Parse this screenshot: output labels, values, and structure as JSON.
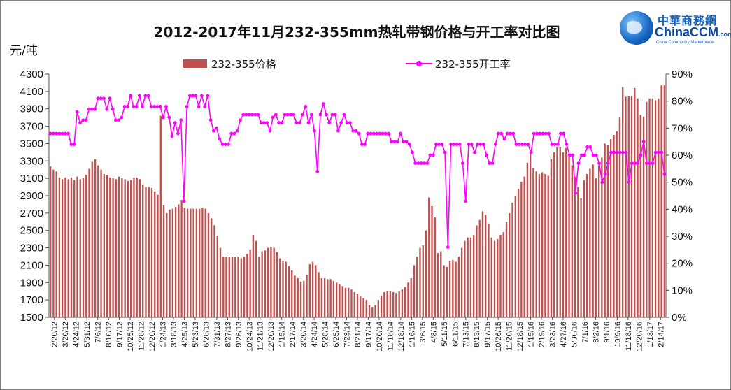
{
  "chart_data": {
    "type": "bar",
    "title": "2012-2017年11月232-355mm热轧带钢价格与开工率对比图",
    "ylabel": "元/吨",
    "ylim": [
      1500,
      4300
    ],
    "y2lim": [
      0,
      90
    ],
    "yticks": [
      "4300",
      "4100",
      "3900",
      "3700",
      "3500",
      "3300",
      "3100",
      "2900",
      "2700",
      "2500",
      "2300",
      "2100",
      "1900",
      "1700",
      "1500"
    ],
    "y2ticks": [
      "90%",
      "80%",
      "70%",
      "60%",
      "50%",
      "40%",
      "30%",
      "20%",
      "10%",
      "0%"
    ],
    "grid": false,
    "legend_position": "top",
    "bar_color": "#c0504d",
    "line_color": "#ff00ff",
    "series": [
      {
        "name": "232-355价格",
        "kind": "bar",
        "values": [
          3240,
          3200,
          3180,
          3110,
          3090,
          3110,
          3090,
          3110,
          3080,
          3120,
          3090,
          3100,
          3140,
          3210,
          3290,
          3320,
          3250,
          3200,
          3150,
          3140,
          3110,
          3100,
          3090,
          3120,
          3100,
          3090,
          3070,
          3080,
          3110,
          3110,
          3090,
          3030,
          3000,
          3000,
          2990,
          2950,
          2910,
          3820,
          2790,
          2700,
          2740,
          2750,
          2770,
          2800,
          2850,
          2760,
          2750,
          2750,
          2750,
          2750,
          2750,
          2760,
          2750,
          2700,
          2640,
          2560,
          2440,
          2300,
          2200,
          2200,
          2200,
          2200,
          2200,
          2200,
          2180,
          2200,
          2230,
          2280,
          2450,
          2380,
          2200,
          2260,
          2270,
          2300,
          2310,
          2300,
          2250,
          2180,
          2150,
          2140,
          2090,
          2040,
          1980,
          1950,
          1910,
          1920,
          1990,
          2110,
          2140,
          2100,
          2020,
          1950,
          1950,
          1940,
          1940,
          1920,
          1900,
          1880,
          1860,
          1840,
          1840,
          1820,
          1790,
          1770,
          1740,
          1720,
          1700,
          1640,
          1620,
          1640,
          1700,
          1750,
          1790,
          1800,
          1800,
          1790,
          1780,
          1800,
          1820,
          1850,
          1900,
          1950,
          2100,
          2200,
          2300,
          2330,
          2500,
          2880,
          2780,
          2650,
          2240,
          2260,
          2100,
          2080,
          2150,
          2160,
          2140,
          2200,
          2300,
          2380,
          2420,
          2420,
          2450,
          2560,
          2620,
          2720,
          2680,
          2580,
          2420,
          2380,
          2400,
          2450,
          2480,
          2600,
          2700,
          2820,
          2900,
          2980,
          3060,
          3120,
          3280,
          3400,
          3220,
          3180,
          3150,
          3170,
          3150,
          3130,
          3320,
          3400,
          3460,
          3460,
          3400,
          3450,
          3350,
          3250,
          3120,
          3000,
          2870,
          3080,
          3150,
          3210,
          3260,
          3100,
          3250,
          3340,
          3500,
          3480,
          3550,
          3600,
          3640,
          3800,
          4150,
          4040,
          4050,
          4050,
          4140,
          4020,
          3830,
          3810,
          3980,
          4020,
          4020,
          4000,
          4020,
          4170,
          4170
        ],
        "color": "#c0504d"
      },
      {
        "name": "232-355开工率",
        "kind": "line",
        "axis": "right",
        "values": [
          68,
          68,
          68,
          68,
          68,
          68,
          68,
          64,
          64,
          76,
          72,
          73,
          73,
          77,
          77,
          77,
          81,
          81,
          81,
          77,
          81,
          77,
          73,
          73,
          74,
          78,
          78,
          82,
          78,
          78,
          82,
          78,
          82,
          82,
          78,
          78,
          78,
          78,
          74,
          78,
          74,
          67,
          72,
          68,
          73,
          43,
          78,
          82,
          82,
          82,
          78,
          82,
          78,
          82,
          73,
          69,
          70,
          66,
          64,
          64,
          64,
          68,
          68,
          69,
          73,
          75,
          75,
          75,
          75,
          75,
          75,
          72,
          72,
          72,
          69,
          74,
          75,
          72,
          72,
          75,
          75,
          75,
          75,
          72,
          72,
          75,
          78,
          72,
          75,
          69,
          54,
          75,
          79,
          75,
          72,
          75,
          75,
          69,
          72,
          75,
          72,
          72,
          69,
          69,
          68,
          64,
          64,
          68,
          68,
          68,
          68,
          68,
          68,
          68,
          68,
          65,
          65,
          65,
          68,
          65,
          65,
          64,
          61,
          57,
          57,
          57,
          57,
          57,
          60,
          60,
          64,
          64,
          64,
          61,
          26,
          64,
          64,
          64,
          64,
          57,
          43,
          64,
          64,
          61,
          64,
          64,
          64,
          60,
          57,
          57,
          64,
          68,
          68,
          66,
          68,
          68,
          68,
          64,
          64,
          64,
          64,
          64,
          61,
          68,
          68,
          68,
          68,
          68,
          68,
          64,
          64,
          64,
          68,
          68,
          64,
          60,
          60,
          46,
          57,
          60,
          60,
          63,
          63,
          60,
          60,
          57,
          50,
          53,
          57,
          61,
          61,
          61,
          61,
          61,
          61,
          50,
          57,
          57,
          57,
          60,
          65,
          57,
          57,
          57,
          61,
          61,
          61,
          53
        ]
      }
    ],
    "x_labels": [
      "2/20/12",
      "3/20/12",
      "4/24/12",
      "5/31/12",
      "7/6/12",
      "8/10/12",
      "9/17/12",
      "10/25/12",
      "11/28/12",
      "12/20/12",
      "1/24/13",
      "3/18/13",
      "4/25/13",
      "5/23/13",
      "6/28/13",
      "7/31/13",
      "8/27/13",
      "9/26/13",
      "10/24/13",
      "11/21/13",
      "12/20/13",
      "1/15/14",
      "2/17/14",
      "3/20/14",
      "4/24/14",
      "5/28/14",
      "6/25/14",
      "7/23/14",
      "8/21/14",
      "9/17/14",
      "10/20/14",
      "11/18/14",
      "12/18/14",
      "1/16/15",
      "3/6/15",
      "4/8/15",
      "5/11/15",
      "6/11/15",
      "7/13/15",
      "8/13/15",
      "9/17/15",
      "10/26/15",
      "11/20/15",
      "12/18/15",
      "1/15/16",
      "2/19/16",
      "3/23/16",
      "4/27/16",
      "5/30/16",
      "7/1/16",
      "8/2/16",
      "9/1/16",
      "10/9/16",
      "11/18/16",
      "12/20/16",
      "1/13/17",
      "2/14/17"
    ]
  },
  "legend": {
    "bar_label": "232-355价格",
    "line_label": "232-355开工率"
  },
  "logo": {
    "cn": "中華商務網",
    "en_main": "ChinaCCM",
    "en_suffix": ".com",
    "sub": "China Commodity Marketplace"
  }
}
